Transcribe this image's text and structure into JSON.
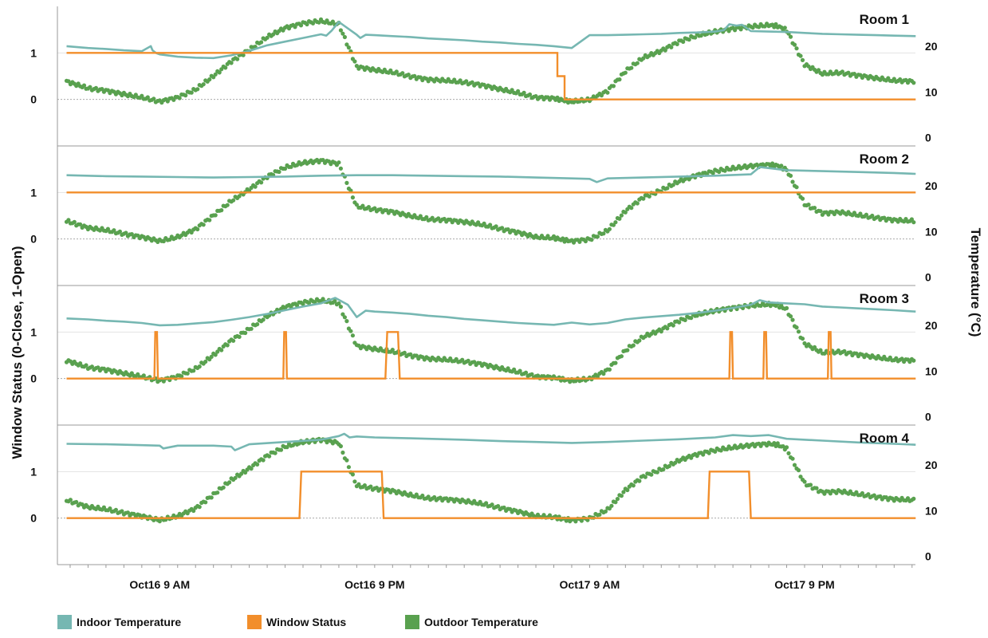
{
  "chart_data": {
    "type": "line",
    "y_left_label": "Window Status (0-Close, 1-Open)",
    "y_right_label": "Temperature (°C)",
    "x_unit": "hours since Oct16 00:00",
    "x_range": [
      3.2,
      51.5
    ],
    "x_ticks": [
      {
        "hour": 9,
        "label": "Oct16 9 AM"
      },
      {
        "hour": 21,
        "label": "Oct16 9 PM"
      },
      {
        "hour": 33,
        "label": "Oct17 9 AM"
      },
      {
        "hour": 45,
        "label": "Oct17 9 PM"
      }
    ],
    "y_left_ticks": [
      0,
      1
    ],
    "y_left_range": [
      -1,
      2
    ],
    "y_right_ticks": [
      0,
      10,
      20
    ],
    "y_right_range": [
      -1.8,
      28.7
    ],
    "gridlines_left": true,
    "legend": {
      "position": "bottom",
      "items": [
        {
          "label": "Indoor Temperature",
          "color": "#76b7b2"
        },
        {
          "label": "Window Status",
          "color": "#f28e2b"
        },
        {
          "label": "Outdoor Temperature",
          "color": "#59a14f"
        }
      ]
    },
    "outdoor_temperature": {
      "hours": [
        3.8,
        5,
        6,
        7,
        8,
        9,
        10,
        11,
        12,
        13,
        14,
        15,
        16,
        17,
        18,
        19,
        20,
        21,
        22,
        23,
        24,
        25,
        26,
        27,
        28,
        29,
        30,
        31,
        31.5,
        32,
        33,
        34,
        35,
        36,
        37,
        38,
        39,
        40,
        41,
        42,
        43,
        43.5,
        44,
        45,
        46,
        47,
        48,
        49,
        50,
        51.2
      ],
      "values": [
        12.3,
        10.8,
        10.3,
        9.5,
        8.8,
        7.9,
        8.8,
        10.5,
        13.5,
        16.7,
        19.2,
        22,
        24,
        25,
        25.5,
        24.8,
        15.5,
        14.8,
        14.3,
        13.4,
        12.7,
        12.5,
        12.1,
        11.5,
        10.6,
        9.8,
        8.8,
        8.6,
        8.2,
        7.9,
        8.3,
        10.2,
        14.5,
        17.5,
        19,
        21,
        22.3,
        23.2,
        23.8,
        24.3,
        24.6,
        24.4,
        23.5,
        16,
        14,
        14.2,
        13.6,
        13,
        12.5,
        12.3
      ]
    },
    "rooms": [
      {
        "name": "Room 1",
        "indoor_temperature": {
          "hours": [
            3.8,
            5,
            6,
            7,
            8,
            8.5,
            8.6,
            8.8,
            9,
            10,
            11,
            12,
            13,
            14,
            15,
            16,
            17,
            18,
            18.3,
            18.6,
            19,
            20,
            20.2,
            20.5,
            21,
            22,
            23,
            24,
            25,
            26,
            27,
            28,
            29,
            30,
            31,
            31.5,
            32,
            33,
            34,
            35,
            36,
            37,
            38,
            39,
            40,
            40.5,
            40.8,
            41.2,
            41.5,
            42,
            43,
            44,
            45,
            46,
            47,
            48,
            49,
            50,
            51.2
          ],
          "values": [
            20,
            19.6,
            19.4,
            19.1,
            18.9,
            20,
            19.1,
            18.5,
            18.2,
            17.7,
            17.5,
            17.4,
            18,
            19,
            20.2,
            21,
            21.8,
            22.6,
            22.3,
            23.4,
            25.3,
            22.5,
            21.8,
            22.5,
            22.4,
            22.2,
            22,
            21.7,
            21.5,
            21.3,
            21,
            20.8,
            20.5,
            20.3,
            20,
            19.8,
            19.6,
            22.4,
            22.4,
            22.5,
            22.6,
            22.7,
            22.9,
            23,
            23.2,
            23.5,
            24.8,
            24.5,
            24.7,
            23.3,
            23.2,
            23.1,
            22.9,
            22.7,
            22.6,
            22.5,
            22.4,
            22.3,
            22.2
          ]
        },
        "window_status": {
          "hours": [
            3.8,
            31.2,
            31.2,
            31.6,
            31.6,
            51.2
          ],
          "values": [
            1,
            1,
            0.5,
            0.5,
            0,
            0
          ]
        }
      },
      {
        "name": "Room 2",
        "indoor_temperature": {
          "hours": [
            3.8,
            6,
            8,
            10,
            12,
            14,
            16,
            18,
            20,
            22,
            24,
            26,
            28,
            30,
            32,
            33,
            33.4,
            34,
            36,
            38,
            40,
            42,
            42.5,
            44,
            46,
            48,
            50,
            51.2
          ],
          "values": [
            22.3,
            22.1,
            22,
            21.9,
            21.8,
            21.9,
            22,
            22.2,
            22.3,
            22.3,
            22.2,
            22.1,
            22,
            21.8,
            21.6,
            21.5,
            20.8,
            21.6,
            21.8,
            22,
            22.2,
            22.5,
            24.1,
            23.4,
            23.2,
            23,
            22.8,
            22.6
          ]
        },
        "window_status": {
          "hours": [
            3.8,
            51.2
          ],
          "values": [
            1,
            1
          ]
        }
      },
      {
        "name": "Room 3",
        "indoor_temperature": {
          "hours": [
            3.8,
            5,
            6,
            7,
            8,
            9,
            10,
            11,
            12,
            13,
            14,
            15,
            16,
            17,
            18,
            18.8,
            19.5,
            20,
            20.5,
            21,
            22,
            23,
            24,
            25,
            26,
            27,
            28,
            29,
            30,
            31,
            32,
            33,
            34,
            35,
            36,
            37,
            38,
            39,
            40,
            41,
            42,
            42.5,
            43,
            44,
            45,
            46,
            47,
            48,
            49,
            50,
            51.2
          ],
          "values": [
            21.5,
            21.3,
            21,
            20.8,
            20.5,
            20,
            20.1,
            20.4,
            20.7,
            21.2,
            21.8,
            22.5,
            23.3,
            24.1,
            24.8,
            26,
            24.5,
            21.8,
            23.2,
            23,
            22.8,
            22.5,
            22.1,
            21.8,
            21.4,
            21.1,
            20.8,
            20.5,
            20.3,
            20.1,
            20.6,
            20.2,
            20.5,
            21.3,
            21.7,
            22,
            22.3,
            22.7,
            23.2,
            23.8,
            24.5,
            25.5,
            25,
            24.8,
            24.6,
            24.1,
            23.9,
            23.7,
            23.5,
            23.3,
            23
          ]
        },
        "window_status": {
          "hours": [
            3.8,
            8.7,
            8.75,
            8.85,
            8.9,
            15.9,
            15.95,
            16.05,
            16.1,
            21.6,
            21.7,
            22.3,
            22.4,
            40.8,
            40.85,
            40.95,
            41,
            42.7,
            42.75,
            42.85,
            42.9,
            46.3,
            46.35,
            46.45,
            46.5,
            51.2
          ],
          "values": [
            0,
            0,
            1,
            1,
            0,
            0,
            1,
            1,
            0,
            0,
            1,
            1,
            0,
            0,
            1,
            1,
            0,
            0,
            1,
            1,
            0,
            0,
            1,
            1,
            0,
            0
          ]
        }
      },
      {
        "name": "Room 4",
        "indoor_temperature": {
          "hours": [
            3.8,
            6,
            8,
            9,
            9.2,
            10,
            12,
            13,
            13.2,
            14,
            16,
            18,
            19,
            19.3,
            19.6,
            20,
            21,
            22,
            23,
            24,
            26,
            28,
            30,
            32,
            34,
            36,
            38,
            40,
            41,
            42,
            43,
            43.5,
            44,
            46,
            48,
            50,
            51.2
          ],
          "values": [
            24.6,
            24.5,
            24.3,
            24.2,
            23.6,
            24.2,
            24.2,
            24,
            23.2,
            24.5,
            25,
            25.5,
            26.3,
            26.8,
            26,
            26.2,
            26,
            25.9,
            25.8,
            25.7,
            25.5,
            25.2,
            25,
            24.8,
            25,
            25.3,
            25.6,
            26,
            26.5,
            26.3,
            26.5,
            26.1,
            25.7,
            25.3,
            24.9,
            24.6,
            24.4
          ]
        },
        "window_status": {
          "hours": [
            3.8,
            16.8,
            16.9,
            21.4,
            21.5,
            39.6,
            39.7,
            41.9,
            42,
            51.2
          ],
          "values": [
            0,
            0,
            1,
            1,
            0,
            0,
            1,
            1,
            0,
            0
          ]
        }
      }
    ]
  }
}
